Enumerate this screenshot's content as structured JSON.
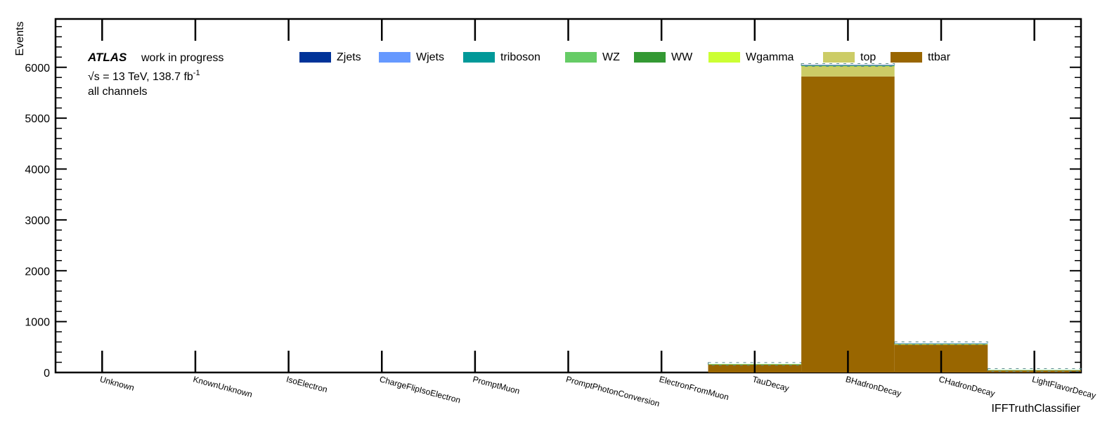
{
  "chart_data": {
    "type": "bar",
    "stacked": true,
    "title": "",
    "ylabel": "Events",
    "xlabel": "IFFTruthClassifier",
    "ylim": [
      0,
      6950
    ],
    "yticks": [
      0,
      1000,
      2000,
      3000,
      4000,
      5000,
      6000
    ],
    "ytick_labels": [
      "0",
      "1000",
      "2000",
      "3000",
      "4000",
      "5000",
      "6000"
    ],
    "categories": [
      "Unknown",
      "KnownUnknown",
      "IsoElectron",
      "ChargeFlipIsoElectron",
      "PromptMuon",
      "PromptPhotonConversion",
      "ElectronFromMuon",
      "TauDecay",
      "BHadronDecay",
      "CHadronDecay",
      "LightFlavorDecay"
    ],
    "series": [
      {
        "name": "ttbar",
        "color": "#996600",
        "values": [
          0,
          0,
          0,
          0,
          0,
          0,
          0,
          155,
          5820,
          545,
          45
        ]
      },
      {
        "name": "top",
        "color": "#cccc66",
        "values": [
          0,
          0,
          0,
          0,
          0,
          0,
          0,
          8,
          200,
          20,
          3
        ]
      },
      {
        "name": "Wgamma",
        "color": "#ccff33",
        "values": [
          0,
          0,
          0,
          0,
          0,
          0,
          0,
          1,
          5,
          1,
          0
        ]
      },
      {
        "name": "WW",
        "color": "#339933",
        "values": [
          0,
          0,
          0,
          0,
          0,
          0,
          0,
          1,
          5,
          2,
          0
        ]
      },
      {
        "name": "WZ",
        "color": "#66cc66",
        "values": [
          0,
          0,
          0,
          0,
          0,
          0,
          0,
          2,
          10,
          5,
          1
        ]
      },
      {
        "name": "triboson",
        "color": "#009999",
        "values": [
          0,
          0,
          0,
          0,
          0,
          0,
          0,
          0,
          2,
          1,
          0
        ]
      },
      {
        "name": "Wjets",
        "color": "#6699ff",
        "values": [
          0,
          0,
          0,
          0,
          0,
          0,
          0,
          0,
          2,
          1,
          0
        ]
      },
      {
        "name": "Zjets",
        "color": "#003399",
        "values": [
          0,
          0,
          0,
          0,
          0,
          0,
          0,
          0,
          1,
          0,
          0
        ]
      }
    ],
    "legend_order": [
      "Zjets",
      "Wjets",
      "triboson",
      "WZ",
      "WW",
      "Wgamma",
      "top",
      "ttbar"
    ],
    "legend_position": "top"
  },
  "annotation": {
    "atlas": "ATLAS",
    "status": "work in progress",
    "energy_prefix": "√s = 13 TeV, 138.7 fb",
    "energy_exp": "-1",
    "channels": "all channels"
  }
}
